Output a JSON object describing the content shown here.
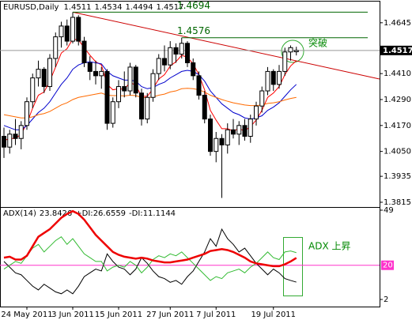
{
  "chart_data": [
    {
      "type": "candlestick",
      "title": "EURUSD,Daily",
      "categories": [
        null,
        null,
        null,
        null,
        "24 May 2011",
        null,
        null,
        null,
        null,
        null,
        null,
        null,
        "3 Jun 2011",
        null,
        null,
        null,
        null,
        null,
        null,
        null,
        "15 Jun 2011",
        null,
        null,
        null,
        null,
        null,
        null,
        null,
        null,
        "27 Jun 2011",
        null,
        null,
        null,
        null,
        null,
        null,
        null,
        "7 Jul 2011",
        null,
        null,
        null,
        null,
        null,
        null,
        null,
        null,
        null,
        "19 Jul 2011",
        null,
        null,
        null,
        null
      ],
      "open": [
        1.412,
        1.407,
        1.413,
        1.411,
        1.417,
        1.428,
        1.439,
        1.443,
        1.435,
        1.448,
        1.458,
        1.463,
        1.456,
        1.467,
        1.456,
        1.446,
        1.442,
        1.44,
        1.442,
        1.418,
        1.428,
        1.435,
        1.433,
        1.444,
        1.432,
        1.42,
        1.43,
        1.441,
        1.448,
        1.445,
        1.453,
        1.45,
        1.455,
        1.446,
        1.44,
        1.431,
        1.42,
        1.405,
        1.411,
        1.408,
        1.415,
        1.413,
        1.417,
        1.412,
        1.42,
        1.426,
        1.433,
        1.442,
        1.436,
        1.442,
        1.451,
        1.4511
      ],
      "high": [
        1.416,
        1.415,
        1.42,
        1.419,
        1.43,
        1.441,
        1.447,
        1.444,
        1.45,
        1.46,
        1.465,
        1.466,
        1.4694,
        1.468,
        1.458,
        1.449,
        1.447,
        1.444,
        1.443,
        1.43,
        1.438,
        1.442,
        1.446,
        1.445,
        1.434,
        1.432,
        1.443,
        1.45,
        1.454,
        1.456,
        1.455,
        1.4576,
        1.456,
        1.448,
        1.442,
        1.433,
        1.422,
        1.414,
        1.413,
        1.418,
        1.42,
        1.419,
        1.42,
        1.422,
        1.428,
        1.435,
        1.444,
        1.443,
        1.445,
        1.453,
        1.454,
        1.4534
      ],
      "low": [
        1.402,
        1.404,
        1.408,
        1.406,
        1.415,
        1.425,
        1.435,
        1.432,
        1.433,
        1.444,
        1.453,
        1.454,
        1.455,
        1.454,
        1.444,
        1.438,
        1.436,
        1.434,
        1.415,
        1.416,
        1.425,
        1.43,
        1.431,
        1.43,
        1.417,
        1.418,
        1.428,
        1.438,
        1.442,
        1.443,
        1.446,
        1.448,
        1.444,
        1.438,
        1.429,
        1.418,
        1.403,
        1.4,
        1.3835,
        1.404,
        1.411,
        1.408,
        1.41,
        1.409,
        1.417,
        1.423,
        1.431,
        1.433,
        1.434,
        1.44,
        1.447,
        1.4494
      ],
      "close": [
        1.407,
        1.413,
        1.411,
        1.417,
        1.428,
        1.439,
        1.443,
        1.435,
        1.448,
        1.458,
        1.463,
        1.456,
        1.467,
        1.456,
        1.446,
        1.442,
        1.44,
        1.442,
        1.418,
        1.428,
        1.435,
        1.433,
        1.444,
        1.432,
        1.42,
        1.43,
        1.441,
        1.448,
        1.445,
        1.453,
        1.45,
        1.455,
        1.446,
        1.44,
        1.431,
        1.42,
        1.405,
        1.411,
        1.408,
        1.415,
        1.413,
        1.417,
        1.412,
        1.42,
        1.426,
        1.433,
        1.442,
        1.436,
        1.442,
        1.451,
        1.453,
        1.4517
      ],
      "up_color": "#ffffff",
      "down_color": "#000000",
      "series": [
        {
          "color": "#ff0000",
          "values": [
            1.41,
            1.411,
            1.411,
            1.413,
            1.418,
            1.425,
            1.431,
            1.4325,
            1.4375,
            1.444,
            1.4505,
            1.4525,
            1.457,
            1.4565,
            1.453,
            1.4495,
            1.4465,
            1.445,
            1.436,
            1.4335,
            1.434,
            1.4337,
            1.437,
            1.4355,
            1.4305,
            1.4305,
            1.434,
            1.4385,
            1.4405,
            1.4445,
            1.4465,
            1.4495,
            1.4485,
            1.4455,
            1.4405,
            1.4335,
            1.424,
            1.4195,
            1.4155,
            1.4155,
            1.4145,
            1.4155,
            1.4145,
            1.4165,
            1.4195,
            1.424,
            1.43,
            1.432,
            1.435,
            1.4405,
            1.4445,
            1.447
          ]
        },
        {
          "color": "#0000cc",
          "values": [
            1.417,
            1.416,
            1.415,
            1.415,
            1.417,
            1.42,
            1.423,
            1.425,
            1.428,
            1.432,
            1.436,
            1.439,
            1.443,
            1.445,
            1.446,
            1.4465,
            1.446,
            1.4455,
            1.442,
            1.44,
            1.439,
            1.438,
            1.438,
            1.4375,
            1.435,
            1.434,
            1.4345,
            1.436,
            1.437,
            1.439,
            1.4405,
            1.442,
            1.4425,
            1.442,
            1.4405,
            1.4375,
            1.433,
            1.43,
            1.427,
            1.425,
            1.423,
            1.422,
            1.4205,
            1.42,
            1.4205,
            1.4215,
            1.424,
            1.4255,
            1.4275,
            1.4305,
            1.4335,
            1.436
          ]
        },
        {
          "color": "#ff6a00",
          "values": [
            1.422,
            1.4215,
            1.421,
            1.4205,
            1.4205,
            1.421,
            1.422,
            1.4225,
            1.4235,
            1.425,
            1.4265,
            1.4275,
            1.429,
            1.43,
            1.4305,
            1.431,
            1.4315,
            1.432,
            1.431,
            1.4308,
            1.4308,
            1.4307,
            1.431,
            1.4308,
            1.43,
            1.4298,
            1.4302,
            1.431,
            1.4315,
            1.4325,
            1.433,
            1.434,
            1.4342,
            1.434,
            1.4335,
            1.4325,
            1.431,
            1.43,
            1.429,
            1.4282,
            1.4275,
            1.427,
            1.4265,
            1.4262,
            1.4262,
            1.4265,
            1.4272,
            1.4275,
            1.428,
            1.4288,
            1.4295,
            1.43
          ]
        }
      ],
      "trendline": {
        "x": [
          12,
          65.5
        ],
        "y": [
          1.4694,
          1.4385
        ],
        "color": "#cc0000"
      },
      "levels": [
        1.4694,
        1.4576
      ],
      "level_color": "#006600",
      "annotation": "突破",
      "annotation_color": "#008800",
      "ylim": [
        1.3793,
        1.4743
      ],
      "yticks": [
        1.4645,
        {
          "value": 1.441,
          "label": "1.4410"
        },
        {
          "value": 1.429,
          "label": "1.4290"
        },
        {
          "value": 1.417,
          "label": "1.4170"
        },
        {
          "value": 1.405,
          "label": "1.4050"
        },
        1.3935,
        1.3815
      ]
    },
    {
      "type": "line",
      "series": [
        {
          "name": "ADX(14)",
          "color": "#ee0000",
          "values": [
            24,
            24.5,
            23,
            23,
            25,
            30,
            35,
            37,
            39,
            42,
            45,
            47,
            48.5,
            47,
            44,
            40,
            36,
            33,
            30,
            27,
            25.5,
            24.5,
            24,
            23.5,
            24,
            23.5,
            22.5,
            22,
            21.5,
            21.5,
            22,
            22.5,
            23,
            24,
            25,
            26,
            27.5,
            28,
            28.5,
            28,
            27,
            25.5,
            24,
            22,
            21,
            20.5,
            20,
            19.5,
            19.5,
            20.5,
            22,
            23.8426
          ]
        },
        {
          "name": "+DI:",
          "color": "#33bb33",
          "values": [
            18,
            20,
            22,
            21,
            25,
            29,
            31,
            27,
            30,
            33,
            35,
            31,
            34,
            30,
            26,
            24,
            22,
            22,
            17,
            19,
            20,
            19,
            22,
            20,
            16,
            19,
            23,
            25,
            24,
            26,
            25,
            27,
            24,
            21,
            18,
            15,
            12,
            14,
            13,
            16,
            17,
            18,
            16,
            19,
            21,
            24,
            27,
            24,
            23,
            27,
            27.5,
            26.6559
          ]
        },
        {
          "name": "-DI:",
          "color": "#000000",
          "values": [
            22,
            19,
            16,
            15,
            12,
            9,
            7,
            10,
            8,
            6,
            5,
            7,
            5,
            9,
            14,
            16,
            18,
            17,
            26,
            22,
            19,
            18,
            15,
            18,
            24,
            21,
            17,
            14,
            13,
            11,
            12,
            10,
            14,
            17,
            22,
            27,
            34,
            30,
            39,
            34,
            31,
            27,
            29,
            25,
            21,
            18,
            15,
            18,
            16,
            13,
            12,
            11.1144
          ]
        }
      ],
      "level": 20,
      "level_color": "#ff33cc",
      "annotation": "ADX 上昇",
      "annotation_color": "#008800",
      "ylim": [
        -1.75,
        50.25
      ],
      "yticks": [
        49,
        2
      ]
    }
  ]
}
